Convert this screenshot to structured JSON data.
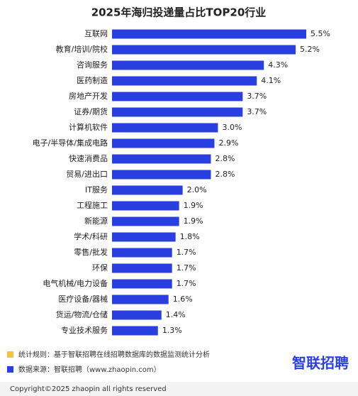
{
  "chart_data": {
    "type": "bar",
    "orientation": "horizontal",
    "title": "2025年海归投递量占比TOP20行业",
    "categories": [
      "互联网",
      "教育/培训/院校",
      "咨询服务",
      "医药制造",
      "房地产开发",
      "证券/期货",
      "计算机软件",
      "电子/半导体/集成电路",
      "快速消费品",
      "贸易/进出口",
      "IT服务",
      "工程施工",
      "新能源",
      "学术/科研",
      "零售/批发",
      "环保",
      "电气机械/电力设备",
      "医疗设备/器械",
      "货运/物流/仓储",
      "专业技术服务"
    ],
    "values": [
      5.5,
      5.2,
      4.3,
      4.1,
      3.7,
      3.7,
      3.0,
      2.9,
      2.8,
      2.8,
      2.0,
      1.9,
      1.9,
      1.8,
      1.7,
      1.7,
      1.7,
      1.6,
      1.4,
      1.3
    ],
    "value_labels": [
      "5.5%",
      "5.2%",
      "4.3%",
      "4.1%",
      "3.7%",
      "3.7%",
      "3.0%",
      "2.9%",
      "2.8%",
      "2.8%",
      "2.0%",
      "1.9%",
      "1.9%",
      "1.8%",
      "1.7%",
      "1.7%",
      "1.7%",
      "1.6%",
      "1.4%",
      "1.3%"
    ],
    "color": "#2a3fe0"
  },
  "footer": {
    "rule": "统计规则：基于智联招聘在线招聘数据库的数据监测统计分析",
    "source": "数据来源：智联招聘（www.zhaopin.com）",
    "logo": "智联招聘",
    "copyright": "Copyright©2025 zhaopin all rights reserved"
  }
}
